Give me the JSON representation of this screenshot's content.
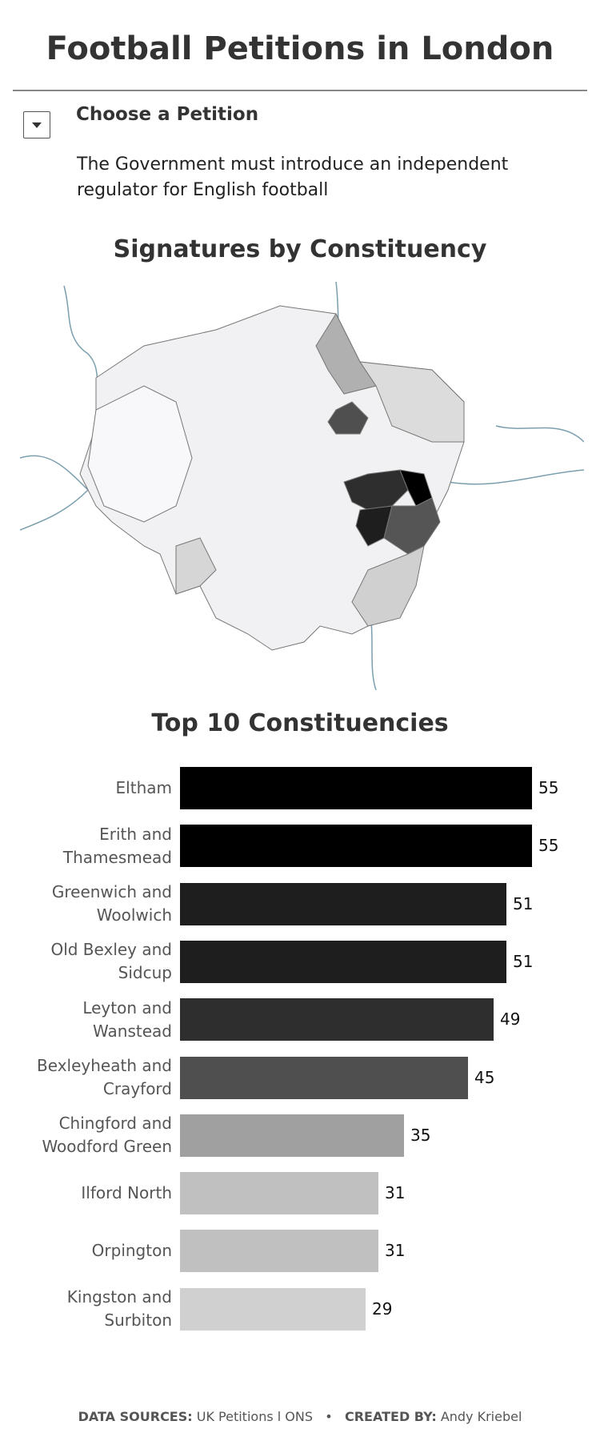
{
  "header": {
    "title": "Football Petitions in London"
  },
  "selector": {
    "label": "Choose a Petition",
    "selected": "The Government must introduce an independent regulator for English football"
  },
  "map": {
    "title": "Signatures by Constituency"
  },
  "chart_data": {
    "type": "bar",
    "orientation": "horizontal",
    "title": "Top 10 Constituencies",
    "categories": [
      "Eltham",
      "Erith and Thamesmead",
      "Greenwich and Woolwich",
      "Old Bexley and Sidcup",
      "Leyton and Wanstead",
      "Bexleyheath and Crayford",
      "Chingford and Woodford Green",
      "Ilford North",
      "Orpington",
      "Kingston and Surbiton"
    ],
    "values": [
      55,
      55,
      51,
      51,
      49,
      45,
      35,
      31,
      31,
      29
    ],
    "colors": [
      "#000000",
      "#000000",
      "#1e1e1e",
      "#1e1e1e",
      "#2e2e2e",
      "#4f4f4f",
      "#a0a0a0",
      "#c0c0c0",
      "#c0c0c0",
      "#d0d0d0"
    ]
  },
  "footer": {
    "sources_label": "DATA SOURCES:",
    "sources": "UK Petitions l ONS",
    "separator": "•",
    "creator_label": "CREATED BY:",
    "creator": "Andy Kriebel"
  }
}
